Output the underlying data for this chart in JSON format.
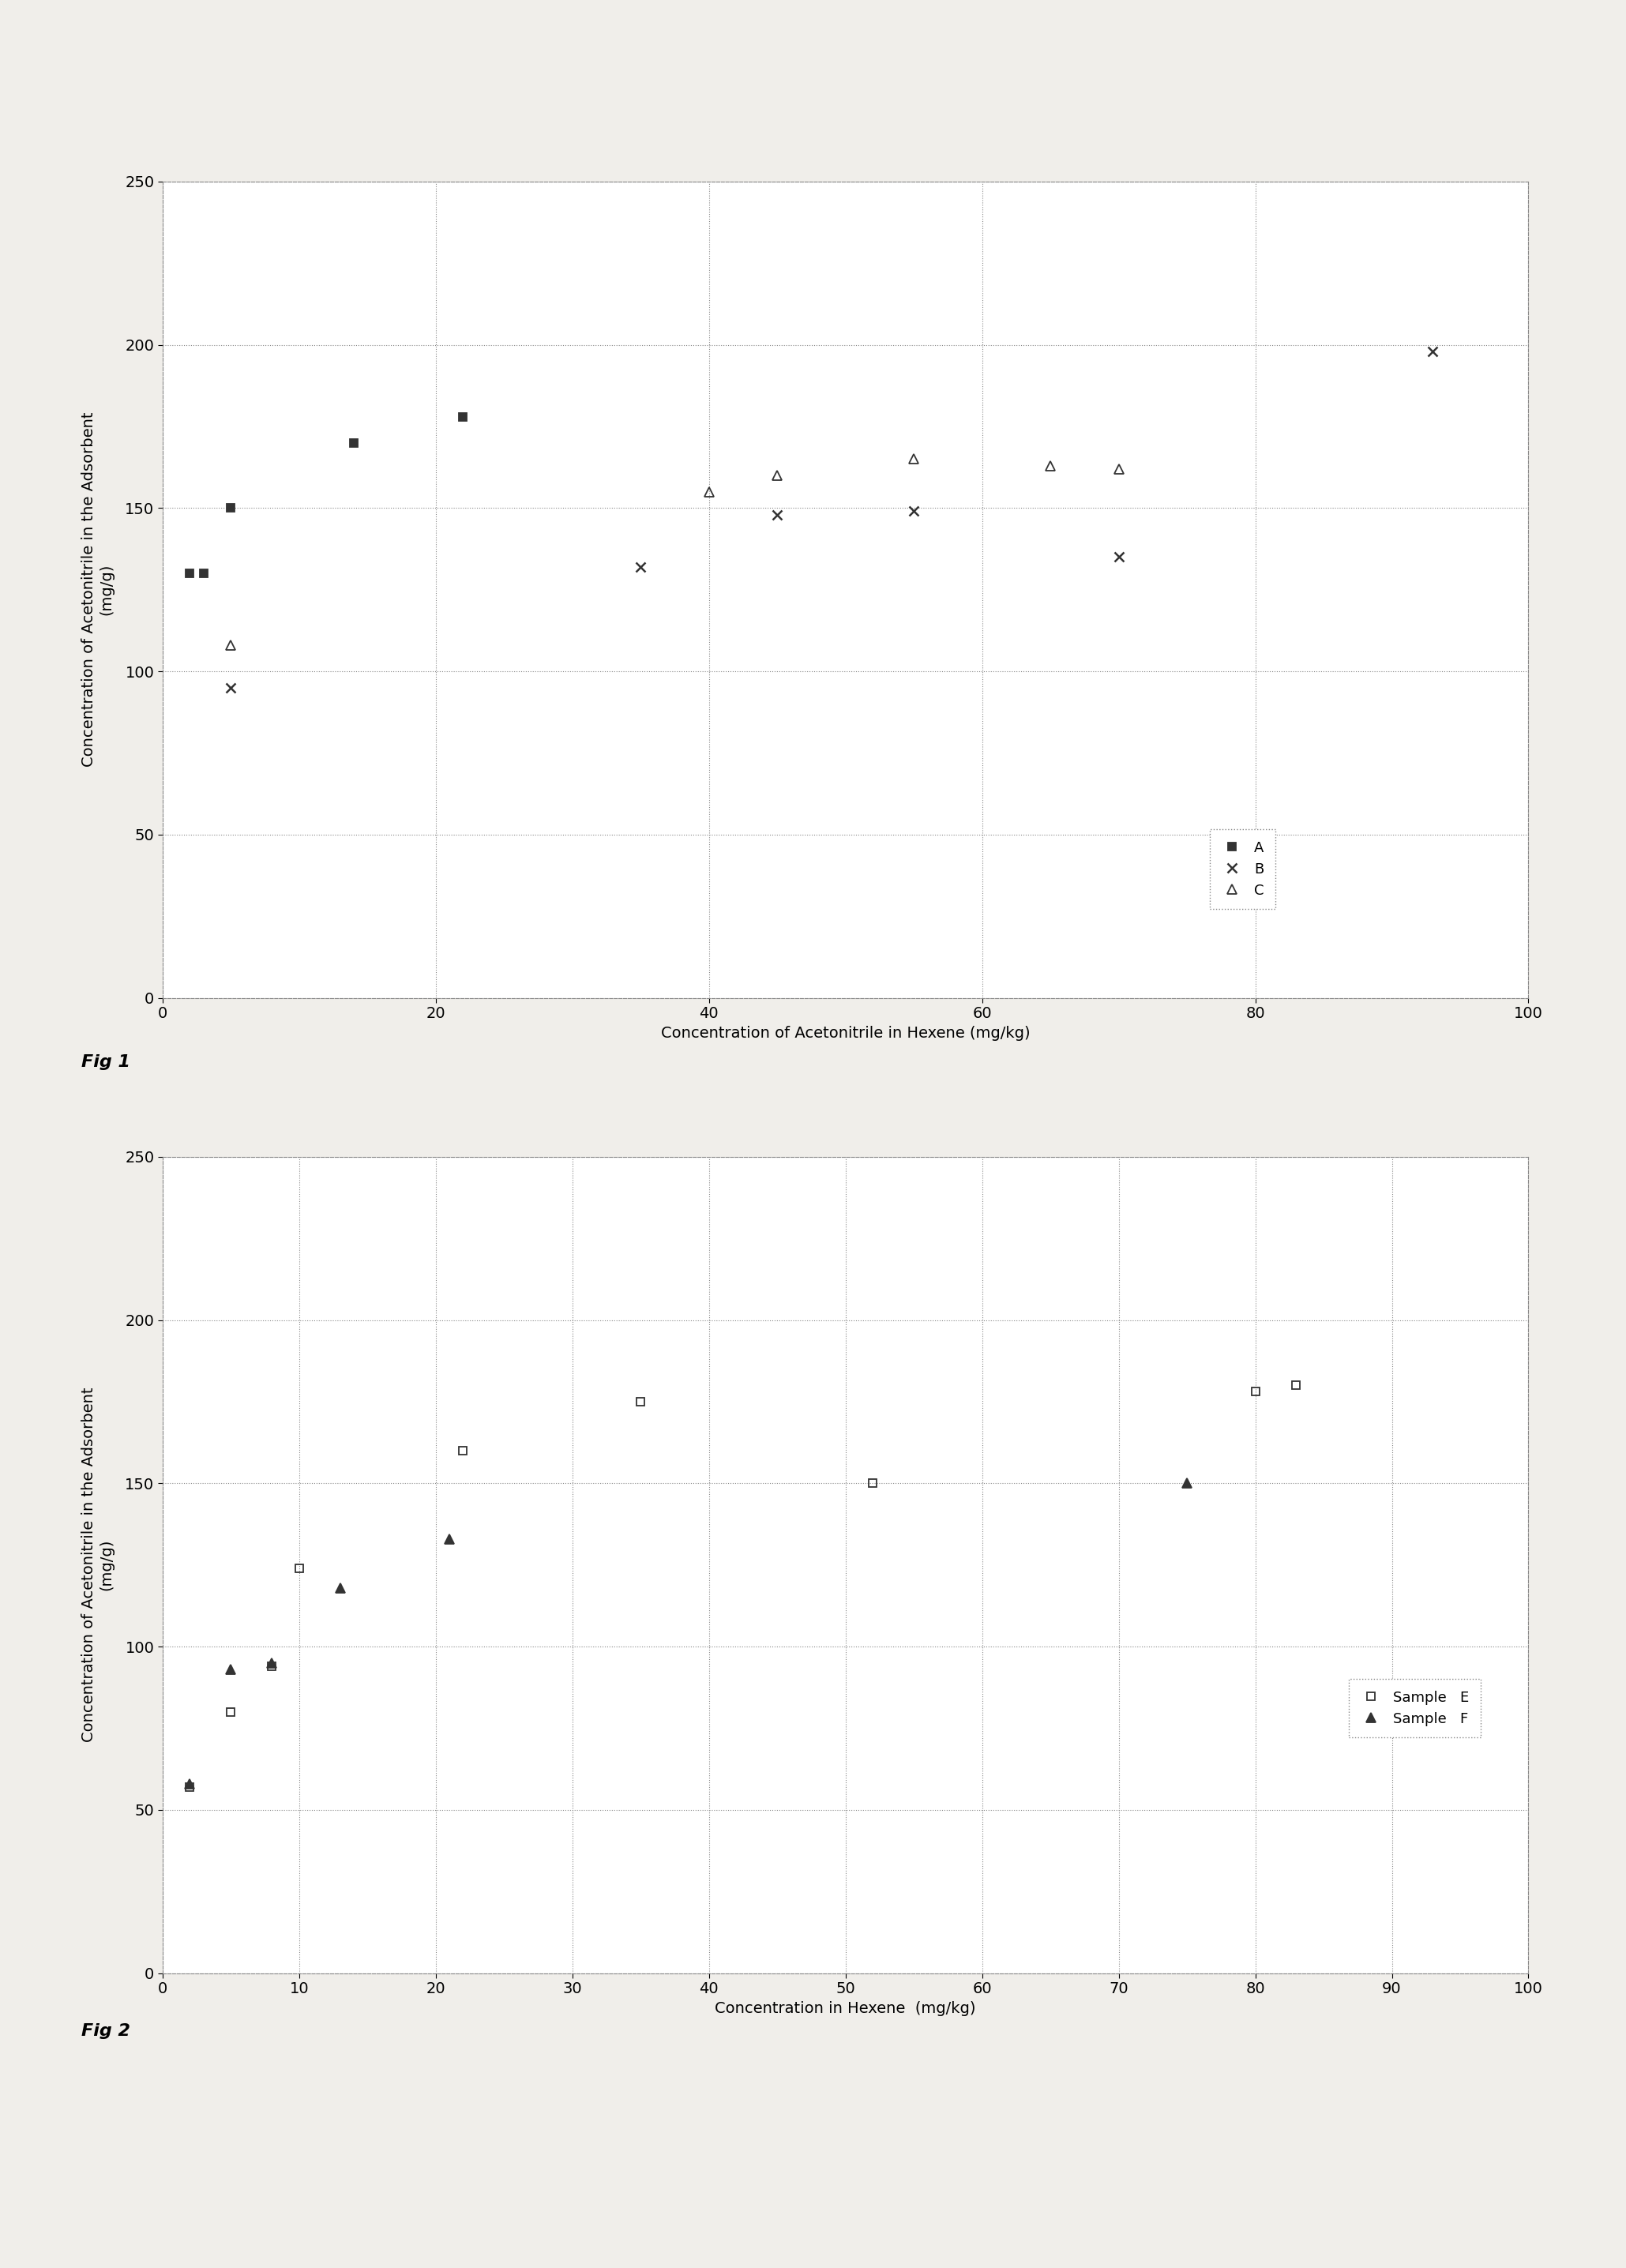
{
  "fig1": {
    "title": "",
    "xlabel": "Concentration of Acetonitrile in Hexene (mg/kg)",
    "ylabel": "Concentration of Acetonitrile in the Adsorbent\n(mg/g)",
    "xlim": [
      0,
      100
    ],
    "ylim": [
      0,
      250
    ],
    "xticks": [
      0,
      20,
      40,
      60,
      80,
      100
    ],
    "yticks": [
      0,
      50,
      100,
      150,
      200,
      250
    ],
    "series_A": {
      "x": [
        2,
        3,
        5,
        14,
        22
      ],
      "y": [
        130,
        130,
        150,
        170,
        178
      ],
      "marker": "s",
      "color": "#333333",
      "label": "A",
      "markersize": 7,
      "fillstyle": "full"
    },
    "series_B": {
      "x": [
        5,
        35,
        45,
        55,
        70,
        93
      ],
      "y": [
        95,
        132,
        148,
        149,
        135,
        198
      ],
      "marker": "x",
      "color": "#333333",
      "label": "B",
      "markersize": 9,
      "fillstyle": "full"
    },
    "series_C": {
      "x": [
        5,
        40,
        45,
        55,
        65,
        70
      ],
      "y": [
        108,
        155,
        160,
        165,
        163,
        162
      ],
      "marker": "^",
      "color": "#333333",
      "label": "C",
      "markersize": 8,
      "fillstyle": "none"
    },
    "fig_label": "Fig 1"
  },
  "fig2": {
    "title": "",
    "xlabel": "Concentration in Hexene  (mg/kg)",
    "ylabel": "Concentration of Acetonitrile in the Adsorbent\n(mg/g)",
    "xlim": [
      0,
      100
    ],
    "ylim": [
      0,
      250
    ],
    "xticks": [
      0,
      10,
      20,
      30,
      40,
      50,
      60,
      70,
      80,
      90,
      100
    ],
    "yticks": [
      0,
      50,
      100,
      150,
      200,
      250
    ],
    "series_E": {
      "x": [
        2,
        5,
        8,
        10,
        22,
        35,
        52,
        80,
        83
      ],
      "y": [
        57,
        80,
        94,
        124,
        160,
        175,
        150,
        178,
        180
      ],
      "marker": "s",
      "color": "#333333",
      "label": "Sample   E",
      "markersize": 7,
      "fillstyle": "none"
    },
    "series_F": {
      "x": [
        2,
        5,
        8,
        13,
        21,
        75
      ],
      "y": [
        58,
        93,
        95,
        118,
        133,
        150
      ],
      "marker": "^",
      "color": "#333333",
      "label": "Sample   F",
      "markersize": 8,
      "fillstyle": "full"
    },
    "fig_label": "Fig 2"
  },
  "page_bg": "#f0eeea",
  "plot_bg": "#ffffff",
  "grid_color": "#888888",
  "grid_linestyle": ":",
  "grid_linewidth": 0.8,
  "spine_color": "#888888",
  "spine_linestyle": "--",
  "axis_linewidth": 0.8,
  "tick_labelsize": 14,
  "label_fontsize": 14,
  "legend_fontsize": 13,
  "fig_label_fontsize": 16
}
